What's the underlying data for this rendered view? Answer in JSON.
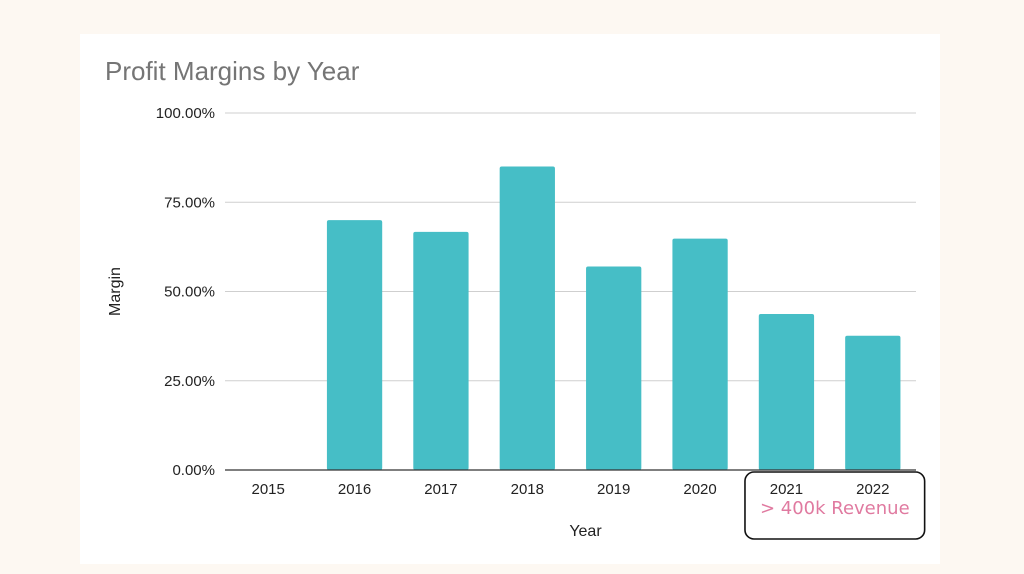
{
  "chart_data": {
    "type": "bar",
    "title": "Profit Margins by Year",
    "xlabel": "Year",
    "ylabel": "Margin",
    "categories": [
      "2015",
      "2016",
      "2017",
      "2018",
      "2019",
      "2020",
      "2021",
      "2022"
    ],
    "values": [
      0,
      70,
      66.7,
      85,
      57,
      64.8,
      43.7,
      37.6
    ],
    "ylim": [
      0,
      100
    ],
    "yticks": [
      "0.00%",
      "25.00%",
      "50.00%",
      "75.00%",
      "100.00%"
    ],
    "ytick_values": [
      0,
      25,
      50,
      75,
      100
    ],
    "grid": true,
    "bar_color": "#46bec6",
    "annotation": {
      "text": "> 400k Revenue",
      "categories": [
        "2021",
        "2022"
      ],
      "color": "#e07aa0"
    }
  }
}
